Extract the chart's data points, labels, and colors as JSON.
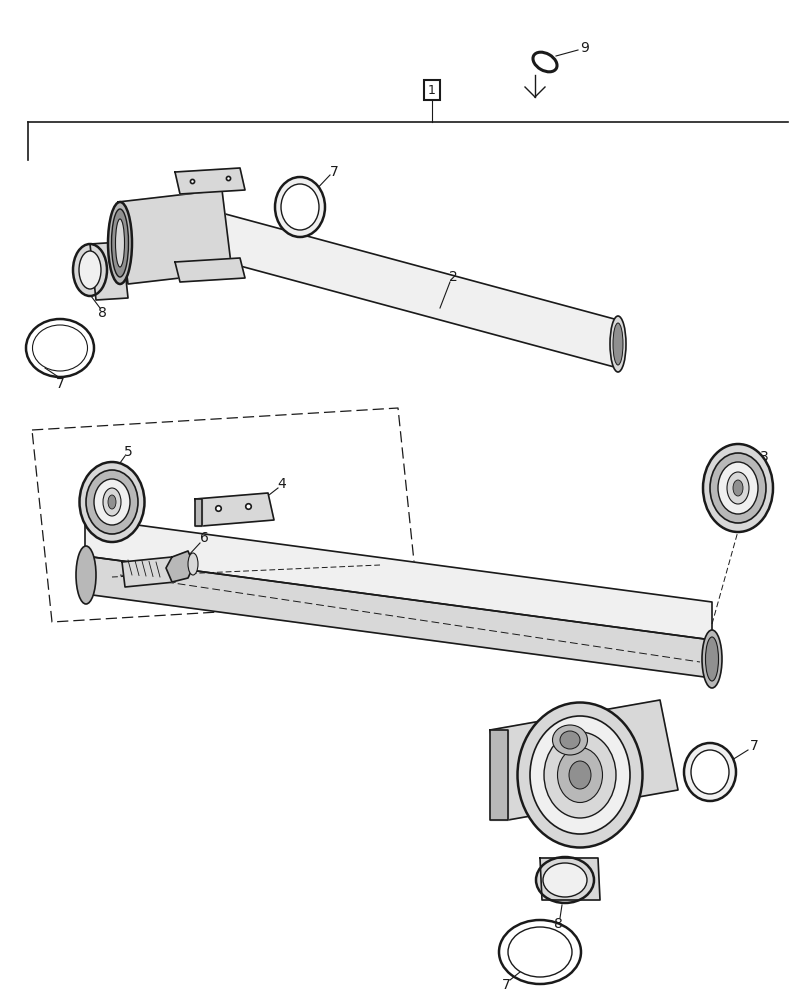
{
  "bg_color": "#ffffff",
  "lc": "#1a1a1a",
  "fill_light": "#f0f0f0",
  "fill_mid": "#d8d8d8",
  "fill_dark": "#b8b8b8",
  "fill_darker": "#909090"
}
